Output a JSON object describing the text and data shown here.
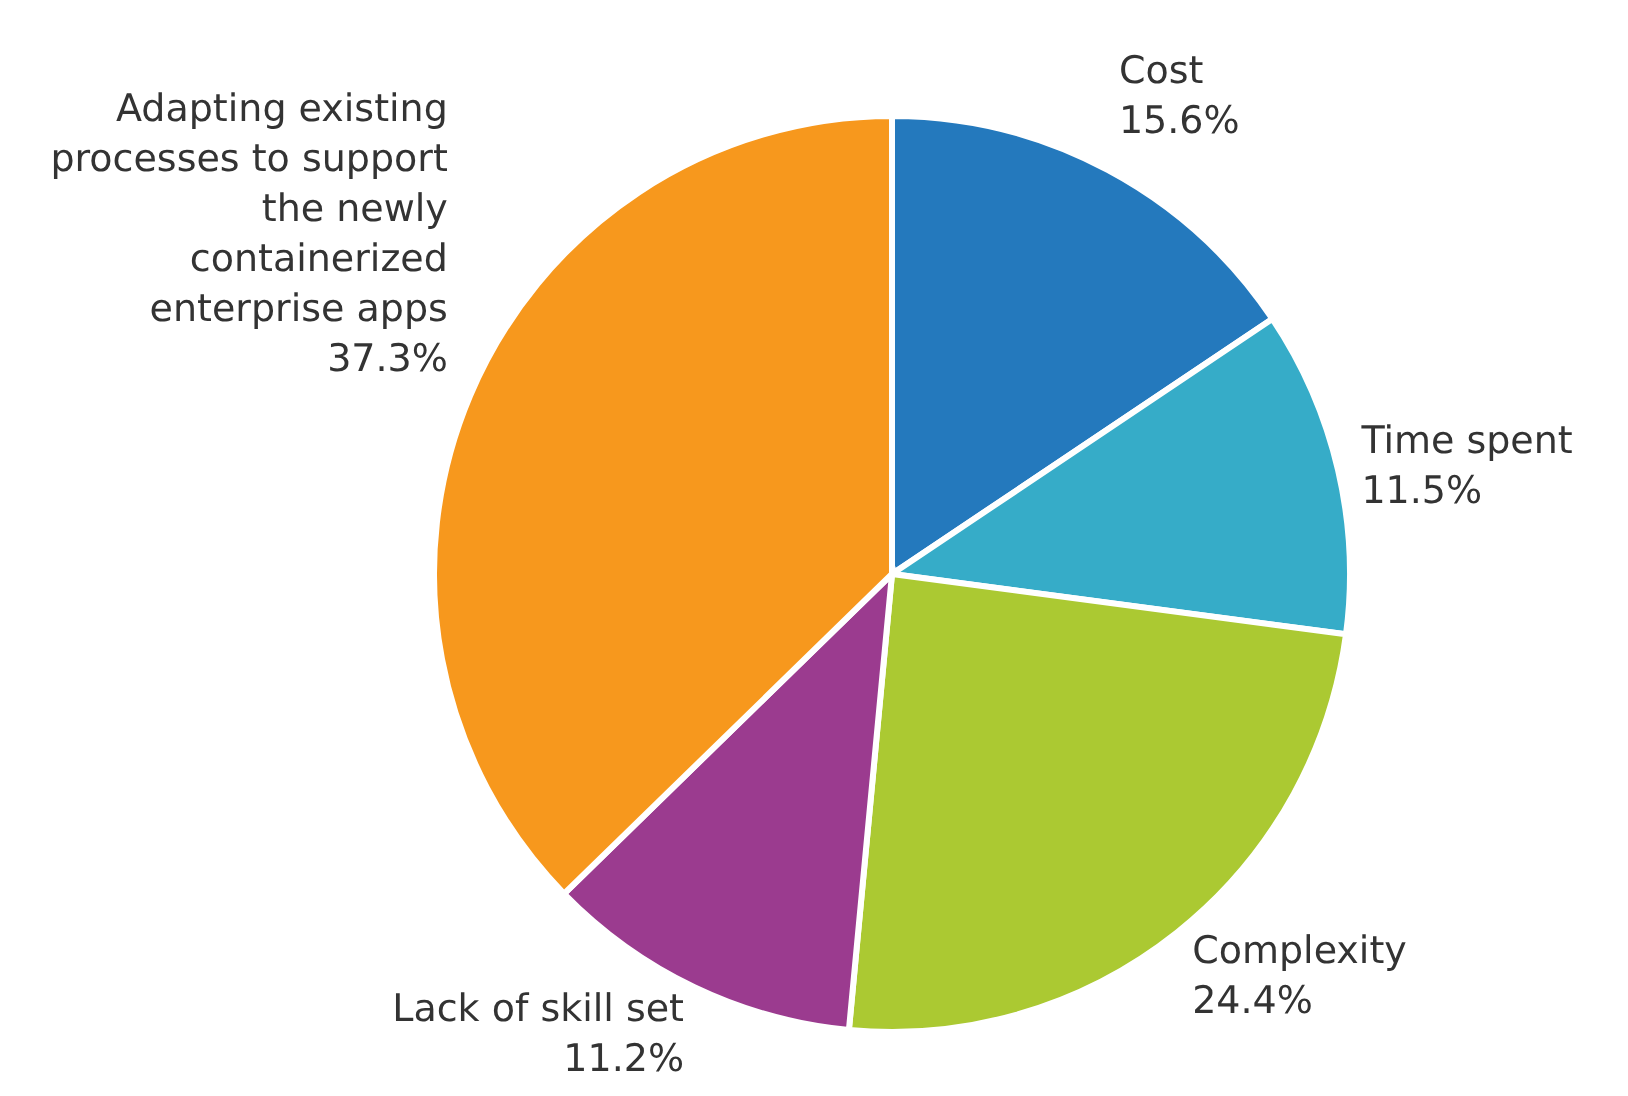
{
  "chart_data": {
    "type": "pie",
    "categories": [
      "Cost",
      "Time spent",
      "Complexity",
      "Lack of skill set",
      "Adapting existing processes to support the newly containerized enterprise apps"
    ],
    "values": [
      15.6,
      11.5,
      24.4,
      11.2,
      37.3
    ],
    "colors": [
      "#2479bd",
      "#36acc8",
      "#abc932",
      "#9b3b8f",
      "#f7981d"
    ],
    "value_labels": [
      "15.6%",
      "11.5%",
      "24.4%",
      "11.2%",
      "37.3%"
    ],
    "legend": false
  }
}
